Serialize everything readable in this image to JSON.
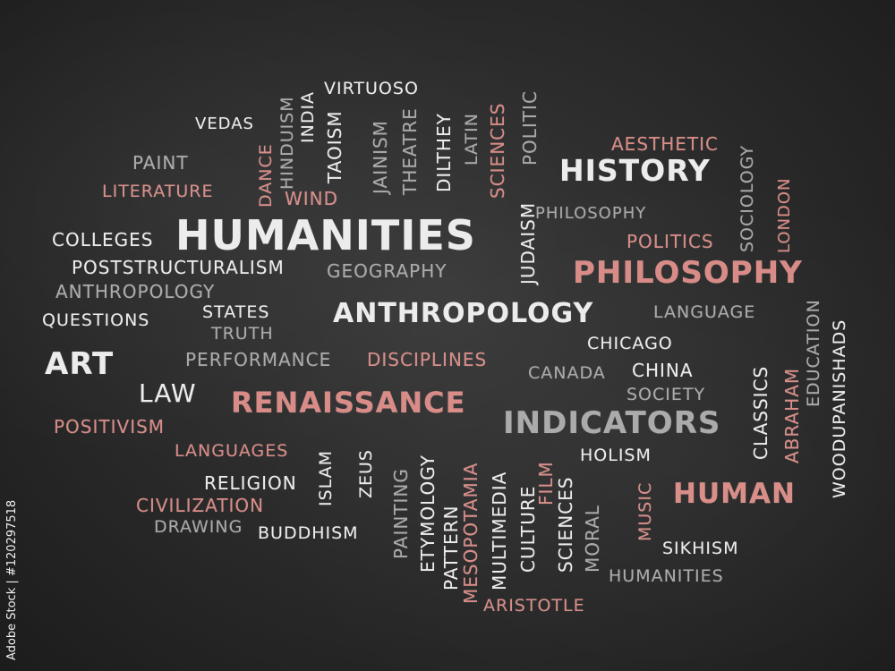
{
  "words": {
    "virtuoso": "VIRTUOSO",
    "vedas": "VEDAS",
    "hinduism": "HINDUISM",
    "india": "INDIA",
    "taoism": "TAOISM",
    "jainism": "JAINISM",
    "theatre": "THEATRE",
    "dilthey": "DILTHEY",
    "latin": "LATIN",
    "sciences_top": "SCIENCES",
    "politic": "POLITIC",
    "aesthetic": "AESTHETIC",
    "sociology": "SOCIOLOGY",
    "london": "LONDON",
    "paint": "PAINT",
    "dance": "DANCE",
    "wind": "WIND",
    "history": "HISTORY",
    "literature": "LITERATURE",
    "humanities_main": "HUMANITIES",
    "judaism": "JUDAISM",
    "philosophy_small": "PHILOSOPHY",
    "colleges": "COLLEGES",
    "politics": "POLITICS",
    "poststructuralism": "POSTSTRUCTURALISM",
    "geography": "GEOGRAPHY",
    "philosophy_big": "PHILOSOPHY",
    "anthropology_small": "ANTHROPOLOGY",
    "woodupanishads": "WOODUPANISHADS",
    "education": "EDUCATION",
    "questions": "QUESTIONS",
    "states": "STATES",
    "truth": "TRUTH",
    "anthropology_big": "ANTHROPOLOGY",
    "language": "LANGUAGE",
    "chicago": "CHICAGO",
    "art": "ART",
    "performance": "PERFORMANCE",
    "disciplines": "DISCIPLINES",
    "canada": "CANADA",
    "china": "CHINA",
    "classics": "CLASSICS",
    "abraham": "ABRAHAM",
    "law": "LAW",
    "renaissance": "RENAISSANCE",
    "society": "SOCIETY",
    "positivism": "POSITIVISM",
    "indicators": "INDICATORS",
    "languages": "LANGUAGES",
    "islam": "ISLAM",
    "zeus": "ZEUS",
    "holism": "HOLISM",
    "religion": "RELIGION",
    "painting": "PAINTING",
    "etymology": "ETYMOLOGY",
    "pattern": "PATTERN",
    "mesopotamia": "MESOPOTAMIA",
    "multimedia": "MULTIMEDIA",
    "culture": "CULTURE",
    "film": "FILM",
    "sciences_bottom": "SCIENCES",
    "moral": "MORAL",
    "music": "MUSIC",
    "human": "HUMAN",
    "civilization": "CIVILIZATION",
    "drawing": "DRAWING",
    "buddhism": "BUDDHISM",
    "sikhism": "SIKHISM",
    "humanities_small": "HUMANITIES",
    "aristotle": "ARISTOTLE"
  },
  "watermark": "Adobe Stock | #120297518",
  "colors": {
    "white": "#ececec",
    "gray": "#a9a9a9",
    "red": "#d98b86",
    "board": "#2c2c2c"
  }
}
